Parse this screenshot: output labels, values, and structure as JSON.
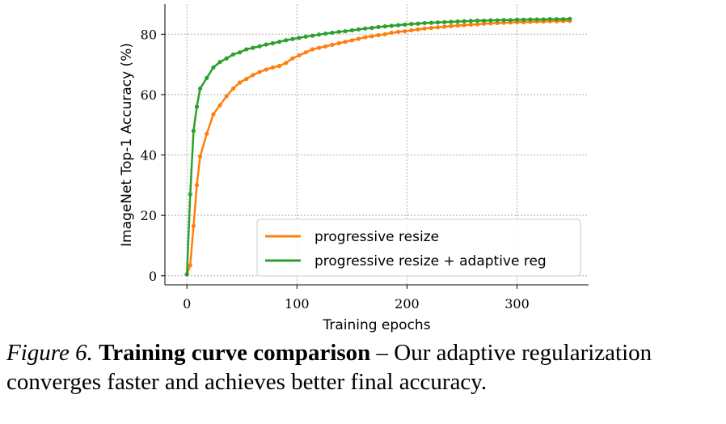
{
  "chart_data": {
    "type": "line",
    "xlabel": "Training epochs",
    "ylabel": "ImageNet Top-1 Accuracy (%)",
    "xlim": [
      -20,
      365
    ],
    "ylim": [
      -3,
      90
    ],
    "xticks": [
      "0",
      "100",
      "200",
      "300"
    ],
    "yticks": [
      "0",
      "20",
      "40",
      "60",
      "80"
    ],
    "grid": "dotted",
    "legend_position": "lower-right",
    "series": [
      {
        "name": "progressive resize",
        "color": "#ff7f0e",
        "x": [
          0,
          3,
          6,
          9,
          12,
          18,
          24,
          30,
          36,
          42,
          48,
          54,
          60,
          66,
          72,
          78,
          84,
          90,
          96,
          102,
          108,
          114,
          120,
          126,
          132,
          138,
          144,
          150,
          156,
          162,
          168,
          174,
          180,
          186,
          192,
          198,
          204,
          210,
          216,
          222,
          228,
          234,
          240,
          246,
          252,
          258,
          264,
          270,
          276,
          282,
          288,
          294,
          300,
          306,
          312,
          318,
          324,
          330,
          336,
          342,
          348
        ],
        "y": [
          0.5,
          3.5,
          16.5,
          30.0,
          39.5,
          47.0,
          53.5,
          56.5,
          59.5,
          62.0,
          64.0,
          65.2,
          66.5,
          67.5,
          68.3,
          69.0,
          69.5,
          70.5,
          72.0,
          73.0,
          74.0,
          75.0,
          75.5,
          76.0,
          76.5,
          77.0,
          77.5,
          78.0,
          78.5,
          79.0,
          79.3,
          79.7,
          80.0,
          80.5,
          80.8,
          81.0,
          81.3,
          81.6,
          81.9,
          82.1,
          82.3,
          82.5,
          82.7,
          82.9,
          83.0,
          83.2,
          83.3,
          83.5,
          83.6,
          83.7,
          83.8,
          83.9,
          84.0,
          84.0,
          84.1,
          84.2,
          84.2,
          84.3,
          84.3,
          84.4,
          84.4
        ]
      },
      {
        "name": "progressive resize + adaptive reg",
        "color": "#2ca02c",
        "x": [
          0,
          3,
          6,
          9,
          12,
          18,
          24,
          30,
          36,
          42,
          48,
          54,
          60,
          66,
          72,
          78,
          84,
          90,
          96,
          102,
          108,
          114,
          120,
          126,
          132,
          138,
          144,
          150,
          156,
          162,
          168,
          174,
          180,
          186,
          192,
          198,
          204,
          210,
          216,
          222,
          228,
          234,
          240,
          246,
          252,
          258,
          264,
          270,
          276,
          282,
          288,
          294,
          300,
          306,
          312,
          318,
          324,
          330,
          336,
          342,
          348
        ],
        "y": [
          0.5,
          27.0,
          48.0,
          56.0,
          62.0,
          65.5,
          69.0,
          70.8,
          72.0,
          73.3,
          74.0,
          75.0,
          75.5,
          76.0,
          76.6,
          77.0,
          77.5,
          78.0,
          78.4,
          78.8,
          79.2,
          79.5,
          79.9,
          80.2,
          80.5,
          80.8,
          81.0,
          81.3,
          81.6,
          81.9,
          82.1,
          82.4,
          82.6,
          82.8,
          83.0,
          83.2,
          83.4,
          83.5,
          83.7,
          83.8,
          83.9,
          84.0,
          84.1,
          84.2,
          84.3,
          84.4,
          84.5,
          84.5,
          84.6,
          84.6,
          84.7,
          84.7,
          84.8,
          84.8,
          84.9,
          84.9,
          84.9,
          85.0,
          85.0,
          85.0,
          85.1
        ]
      }
    ]
  },
  "caption": {
    "label": "Figure 6.",
    "title": "Training curve comparison",
    "text": " – Our adaptive regularization converges faster and achieves better final accuracy."
  }
}
